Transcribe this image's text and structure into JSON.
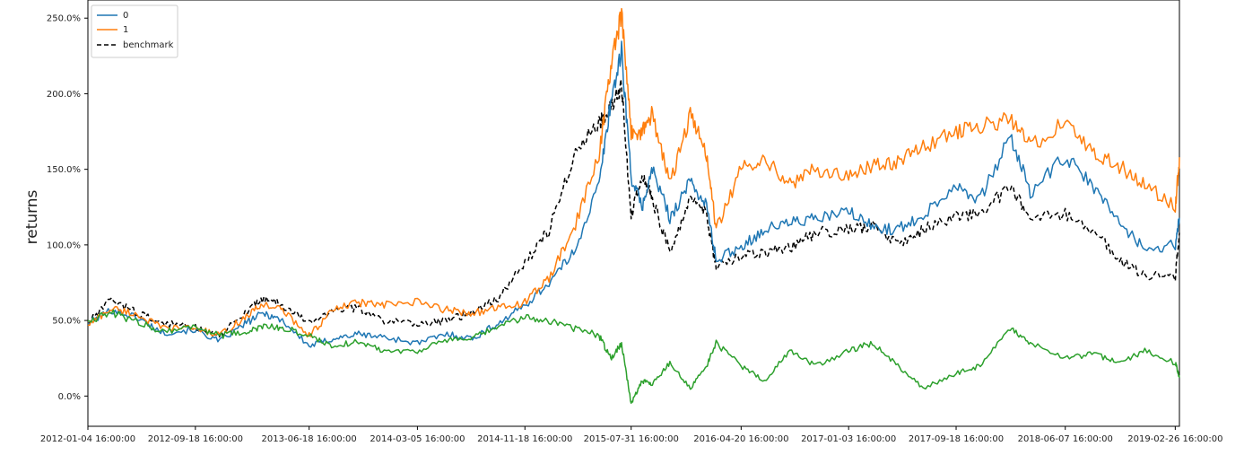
{
  "chart_data": {
    "type": "line",
    "title": "",
    "xlabel": "",
    "ylabel": "returns",
    "x_ticks": [
      "2012-01-04 16:00:00",
      "2012-09-18 16:00:00",
      "2013-06-18 16:00:00",
      "2014-03-05 16:00:00",
      "2014-11-18 16:00:00",
      "2015-07-31 16:00:00",
      "2016-04-20 16:00:00",
      "2017-01-03 16:00:00",
      "2017-09-18 16:00:00",
      "2018-06-07 16:00:00",
      "2019-02-26 16:00:00"
    ],
    "y_ticks": [
      "0.0%",
      "50.0%",
      "100.0%",
      "150.0%",
      "200.0%",
      "250.0%"
    ],
    "y_tick_values": [
      0,
      50,
      100,
      150,
      200,
      250
    ],
    "ylim": [
      -20,
      262
    ],
    "x_points": [
      "2012-01-04",
      "2012-03-01",
      "2012-05-01",
      "2012-07-01",
      "2012-09-18",
      "2012-11-15",
      "2013-01-15",
      "2013-03-01",
      "2013-04-15",
      "2013-06-18",
      "2013-08-15",
      "2013-10-15",
      "2013-12-15",
      "2014-03-05",
      "2014-05-15",
      "2014-07-15",
      "2014-09-15",
      "2014-11-18",
      "2015-01-15",
      "2015-03-15",
      "2015-05-15",
      "2015-06-12",
      "2015-07-08",
      "2015-07-31",
      "2015-08-26",
      "2015-09-20",
      "2015-11-01",
      "2015-12-20",
      "2016-01-28",
      "2016-02-20",
      "2016-04-20",
      "2016-06-15",
      "2016-08-15",
      "2016-10-15",
      "2017-01-03",
      "2017-03-01",
      "2017-05-01",
      "2017-07-01",
      "2017-09-18",
      "2017-11-15",
      "2018-01-26",
      "2018-03-15",
      "2018-06-07",
      "2018-08-15",
      "2018-10-15",
      "2018-12-15",
      "2019-02-26",
      "2019-03-08"
    ],
    "series": [
      {
        "name": "0",
        "color": "#1f77b4",
        "style": "solid",
        "values": [
          48,
          57,
          52,
          42,
          44,
          36,
          48,
          55,
          50,
          33,
          38,
          41,
          39,
          35,
          41,
          38,
          48,
          60,
          75,
          95,
          140,
          195,
          228,
          145,
          125,
          150,
          118,
          142,
          126,
          90,
          99,
          110,
          115,
          117,
          122,
          112,
          110,
          120,
          140,
          130,
          172,
          135,
          158,
          138,
          115,
          97,
          100,
          118
        ]
      },
      {
        "name": "1",
        "color": "#ff7f0e",
        "style": "solid",
        "values": [
          47,
          58,
          54,
          45,
          45,
          40,
          52,
          61,
          57,
          40,
          57,
          62,
          60,
          62,
          57,
          55,
          58,
          62,
          78,
          110,
          160,
          218,
          252,
          175,
          175,
          187,
          140,
          186,
          160,
          110,
          150,
          158,
          140,
          150,
          145,
          153,
          155,
          165,
          175,
          178,
          184,
          165,
          182,
          160,
          152,
          140,
          125,
          158
        ]
      },
      {
        "name": "",
        "color": "#2ca02c",
        "style": "solid",
        "values": [
          50,
          55,
          49,
          43,
          46,
          40,
          42,
          46,
          45,
          40,
          33,
          36,
          30,
          30,
          37,
          38,
          46,
          52,
          50,
          45,
          40,
          25,
          35,
          -5,
          10,
          8,
          22,
          5,
          20,
          35,
          20,
          10,
          30,
          20,
          30,
          35,
          20,
          5,
          15,
          20,
          44,
          35,
          25,
          28,
          22,
          30,
          22,
          12
        ]
      },
      {
        "name": "benchmark",
        "color": "#000000",
        "style": "dashed",
        "values": [
          48,
          64,
          55,
          48,
          46,
          40,
          55,
          65,
          60,
          48,
          57,
          58,
          50,
          48,
          50,
          55,
          65,
          88,
          110,
          160,
          180,
          190,
          205,
          120,
          148,
          130,
          95,
          130,
          120,
          85,
          92,
          95,
          98,
          108,
          110,
          112,
          100,
          110,
          118,
          122,
          138,
          118,
          120,
          110,
          90,
          80,
          78,
          108
        ]
      }
    ],
    "legend": {
      "position": "top-left",
      "entries": [
        {
          "label": "0",
          "color": "#1f77b4",
          "style": "solid"
        },
        {
          "label": "1",
          "color": "#ff7f0e",
          "style": "solid"
        },
        {
          "label": "benchmark",
          "color": "#000000",
          "style": "dashed"
        }
      ]
    },
    "grid": false
  }
}
